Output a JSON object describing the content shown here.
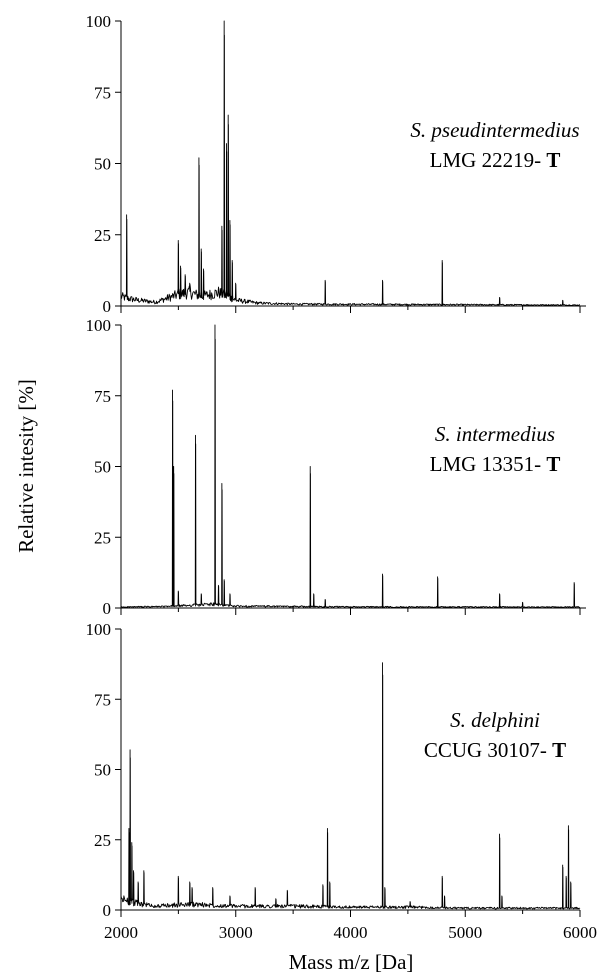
{
  "chart_data": {
    "type": "line",
    "xlabel": "Mass m/z [Da]",
    "ylabel": "Relative intesity [%]",
    "xlim": [
      2000,
      6000
    ],
    "ylim": [
      0,
      100
    ],
    "x_ticks": [
      "2000",
      "3000",
      "4000",
      "5000",
      "6000"
    ],
    "y_ticks": [
      "0",
      "25",
      "50",
      "75",
      "100"
    ],
    "grid": false,
    "panels": [
      {
        "species": "S. pseudintermedius",
        "strain": "LMG 22219-",
        "type_marker": "T",
        "baseline": [
          [
            2000,
            5
          ],
          [
            2050,
            4
          ],
          [
            2150,
            3
          ],
          [
            2300,
            2
          ],
          [
            2500,
            6
          ],
          [
            2600,
            7
          ],
          [
            2700,
            5
          ],
          [
            2850,
            7
          ],
          [
            3000,
            3
          ],
          [
            3200,
            1.5
          ],
          [
            3500,
            1
          ],
          [
            4500,
            0.8
          ],
          [
            6000,
            0.5
          ]
        ],
        "peaks": [
          [
            2050,
            32
          ],
          [
            2500,
            23
          ],
          [
            2520,
            14
          ],
          [
            2560,
            11
          ],
          [
            2600,
            8
          ],
          [
            2680,
            52
          ],
          [
            2700,
            20
          ],
          [
            2720,
            13
          ],
          [
            2880,
            28
          ],
          [
            2900,
            100
          ],
          [
            2920,
            57
          ],
          [
            2935,
            67
          ],
          [
            2950,
            30
          ],
          [
            2970,
            16
          ],
          [
            3000,
            8
          ],
          [
            3780,
            9
          ],
          [
            4280,
            9
          ],
          [
            4800,
            16
          ],
          [
            5300,
            3
          ],
          [
            5850,
            2
          ]
        ]
      },
      {
        "species": "S. intermedius",
        "strain": "LMG 13351-",
        "type_marker": "T",
        "baseline": [
          [
            2000,
            0.5
          ],
          [
            2400,
            0.8
          ],
          [
            2800,
            2
          ],
          [
            3000,
            1
          ],
          [
            4000,
            0.6
          ],
          [
            6000,
            0.5
          ]
        ],
        "peaks": [
          [
            2450,
            77
          ],
          [
            2460,
            50
          ],
          [
            2500,
            6
          ],
          [
            2650,
            61
          ],
          [
            2700,
            5
          ],
          [
            2820,
            100
          ],
          [
            2850,
            8
          ],
          [
            2880,
            44
          ],
          [
            2900,
            10
          ],
          [
            2950,
            5
          ],
          [
            3650,
            50
          ],
          [
            3680,
            5
          ],
          [
            3780,
            3
          ],
          [
            4280,
            12
          ],
          [
            4760,
            11
          ],
          [
            5300,
            5
          ],
          [
            5500,
            2
          ],
          [
            5950,
            9
          ]
        ]
      },
      {
        "species": "S. delphini",
        "strain": "CCUG 30107-",
        "type_marker": "T",
        "baseline": [
          [
            2000,
            6
          ],
          [
            2100,
            4
          ],
          [
            2300,
            2
          ],
          [
            2600,
            3
          ],
          [
            3000,
            2
          ],
          [
            3500,
            2
          ],
          [
            4000,
            1.5
          ],
          [
            4500,
            1.5
          ],
          [
            5000,
            1
          ],
          [
            5500,
            1
          ],
          [
            6000,
            1
          ]
        ],
        "peaks": [
          [
            2070,
            29
          ],
          [
            2080,
            57
          ],
          [
            2095,
            24
          ],
          [
            2110,
            14
          ],
          [
            2150,
            10
          ],
          [
            2200,
            14
          ],
          [
            2500,
            12
          ],
          [
            2600,
            10
          ],
          [
            2620,
            8
          ],
          [
            2800,
            8
          ],
          [
            2950,
            5
          ],
          [
            3170,
            8
          ],
          [
            3350,
            4
          ],
          [
            3450,
            7
          ],
          [
            3760,
            9
          ],
          [
            3800,
            29
          ],
          [
            3820,
            10
          ],
          [
            4280,
            88
          ],
          [
            4300,
            8
          ],
          [
            4520,
            3
          ],
          [
            4800,
            12
          ],
          [
            4820,
            5
          ],
          [
            5300,
            27
          ],
          [
            5320,
            5
          ],
          [
            5850,
            16
          ],
          [
            5880,
            12
          ],
          [
            5900,
            30
          ],
          [
            5920,
            10
          ]
        ]
      }
    ]
  }
}
